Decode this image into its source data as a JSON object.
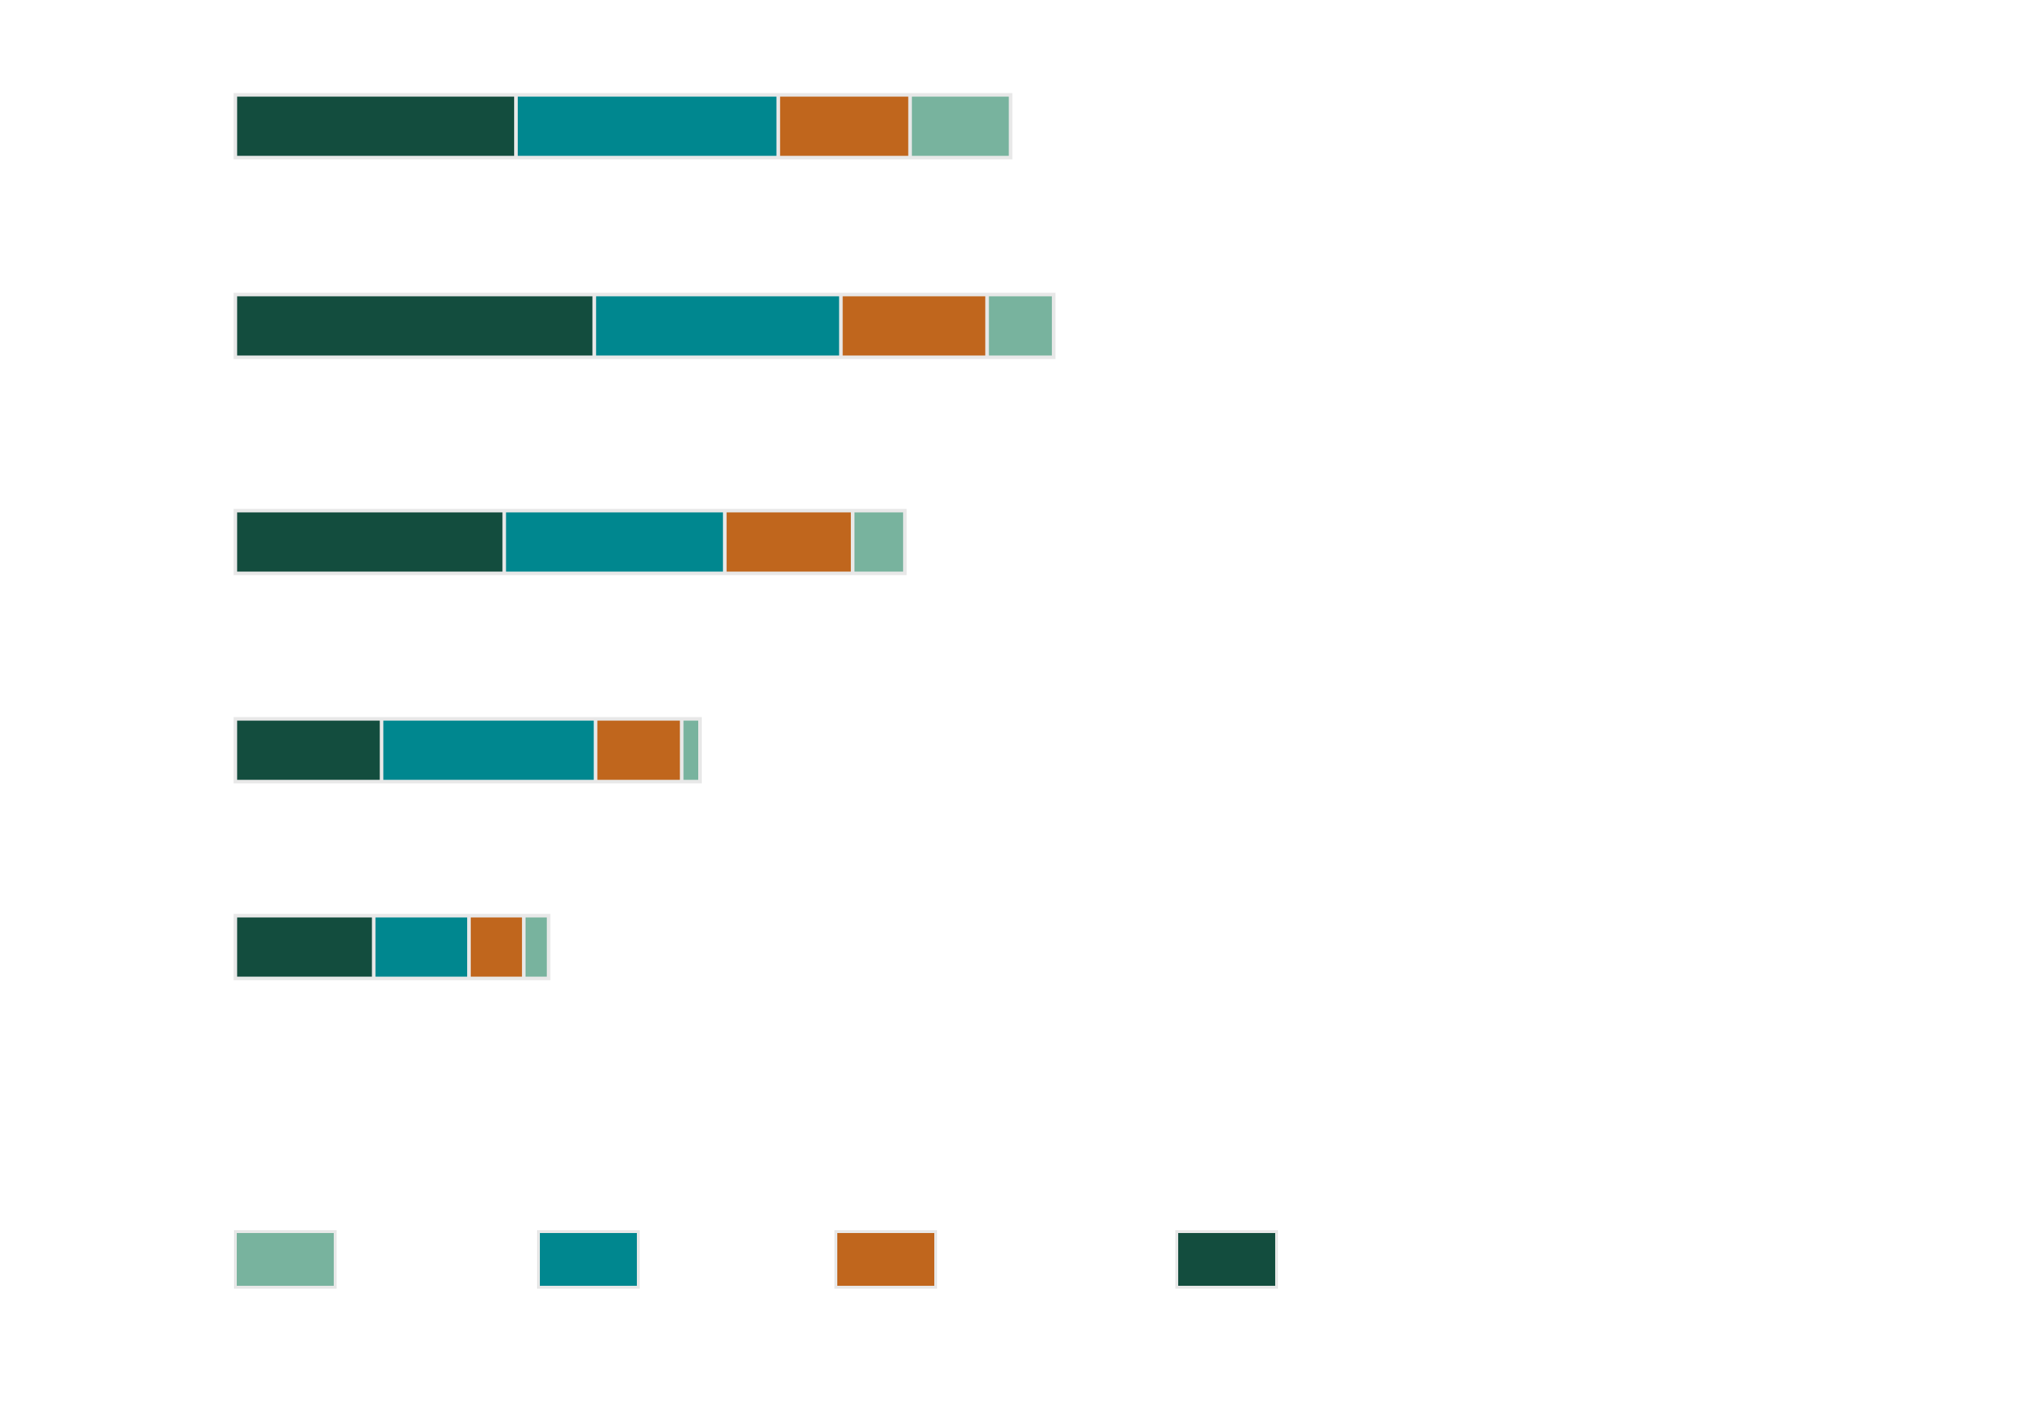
{
  "chart_data": {
    "type": "bar",
    "orientation": "horizontal",
    "stacked": true,
    "title": "",
    "xlabel": "",
    "ylabel": "",
    "categories": [
      "",
      "",
      "",
      "",
      ""
    ],
    "series": [
      {
        "color": "#134d3e",
        "values": [
          21.5,
          27.5,
          20.6,
          11.2,
          10.6
        ]
      },
      {
        "color": "#00878f",
        "values": [
          20.1,
          18.9,
          16.9,
          16.4,
          7.3
        ]
      },
      {
        "color": "#c0661d",
        "values": [
          10.1,
          11.2,
          9.8,
          6.6,
          4.2
        ]
      },
      {
        "color": "#78b39e",
        "values": [
          7.7,
          5.1,
          4.0,
          1.4,
          1.9
        ]
      }
    ],
    "legend": {
      "position": "bottom",
      "order": [
        3,
        1,
        2,
        0
      ]
    },
    "grid": false
  }
}
